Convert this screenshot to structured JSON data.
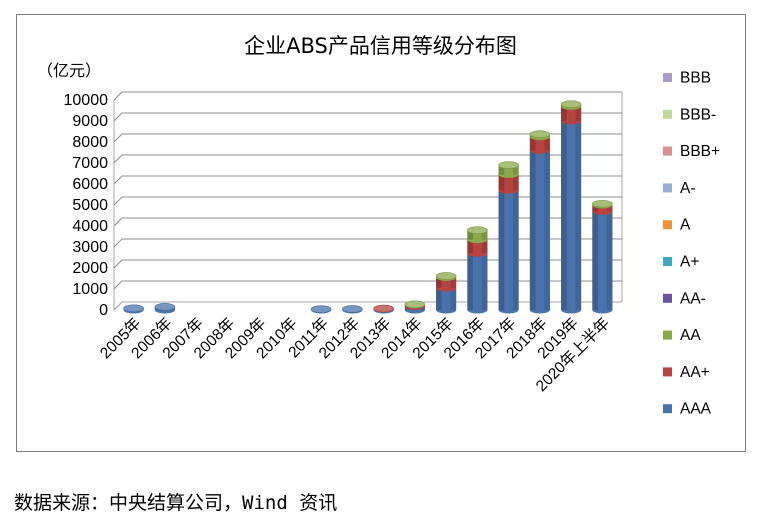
{
  "chart_data": {
    "type": "bar",
    "stacked": true,
    "title": "企业ABS产品信用等级分布图",
    "unit_label": "（亿元）",
    "categories": [
      "2005年",
      "2006年",
      "2007年",
      "2008年",
      "2009年",
      "2010年",
      "2011年",
      "2012年",
      "2013年",
      "2014年",
      "2015年",
      "2016年",
      "2017年",
      "2018年",
      "2019年",
      "2020年上半年"
    ],
    "ylim": [
      0,
      10000
    ],
    "yticks": [
      0,
      1000,
      2000,
      3000,
      4000,
      5000,
      6000,
      7000,
      8000,
      9000,
      10000
    ],
    "grid": true,
    "legend_position": "right",
    "series": [
      {
        "name": "AAA",
        "color": "#4a73ad",
        "values": [
          80,
          150,
          0,
          0,
          0,
          0,
          40,
          50,
          60,
          170,
          1050,
          2700,
          5700,
          7600,
          9000,
          4700
        ]
      },
      {
        "name": "AA+",
        "color": "#b5433f",
        "values": [
          0,
          0,
          0,
          0,
          0,
          0,
          0,
          0,
          10,
          80,
          500,
          650,
          750,
          650,
          700,
          300
        ]
      },
      {
        "name": "AA",
        "color": "#8aa84a",
        "values": [
          0,
          0,
          0,
          0,
          0,
          0,
          0,
          0,
          0,
          20,
          70,
          450,
          450,
          120,
          100,
          60
        ]
      },
      {
        "name": "AA-",
        "color": "#6b52a0",
        "values": [
          0,
          0,
          0,
          0,
          0,
          0,
          0,
          0,
          0,
          0,
          0,
          0,
          0,
          0,
          0,
          0
        ]
      },
      {
        "name": "A+",
        "color": "#3fa6c0",
        "values": [
          0,
          0,
          0,
          0,
          0,
          0,
          0,
          0,
          0,
          0,
          0,
          0,
          0,
          0,
          0,
          0
        ]
      },
      {
        "name": "A",
        "color": "#f19135",
        "values": [
          0,
          0,
          0,
          0,
          0,
          0,
          0,
          0,
          0,
          0,
          0,
          0,
          0,
          0,
          0,
          0
        ]
      },
      {
        "name": "A-",
        "color": "#98afd3",
        "values": [
          0,
          0,
          0,
          0,
          0,
          0,
          0,
          0,
          0,
          0,
          0,
          0,
          0,
          0,
          0,
          0
        ]
      },
      {
        "name": "BBB+",
        "color": "#d69190",
        "values": [
          0,
          0,
          0,
          0,
          0,
          0,
          0,
          0,
          0,
          0,
          0,
          0,
          0,
          0,
          0,
          0
        ]
      },
      {
        "name": "BBB-",
        "color": "#c0d69a",
        "values": [
          0,
          0,
          0,
          0,
          0,
          0,
          0,
          0,
          0,
          0,
          0,
          0,
          0,
          0,
          0,
          0
        ]
      },
      {
        "name": "BBB",
        "color": "#ab9bc5",
        "values": [
          0,
          0,
          0,
          0,
          0,
          0,
          0,
          0,
          0,
          0,
          0,
          0,
          0,
          0,
          0,
          0
        ]
      }
    ]
  },
  "source_text": "数据来源：中央结算公司，Wind 资讯"
}
